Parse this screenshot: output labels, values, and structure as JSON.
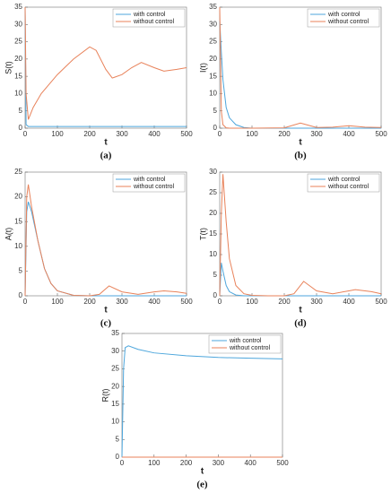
{
  "chart_data": [
    {
      "type": "line",
      "ylabel": "S(t)",
      "xlabel": "t",
      "caption": "(a)",
      "x": [
        0,
        3,
        10,
        25,
        50,
        100,
        150,
        200,
        220,
        250,
        270,
        300,
        330,
        360,
        400,
        430,
        470,
        500
      ],
      "series": [
        {
          "name": "with control",
          "color": "#4da6dc",
          "values": [
            35,
            1,
            0.5,
            0.5,
            0.5,
            0.5,
            0.5,
            0.5,
            0.5,
            0.5,
            0.5,
            0.5,
            0.5,
            0.5,
            0.5,
            0.5,
            0.5,
            0.5
          ]
        },
        {
          "name": "without control",
          "color": "#e8825a",
          "values": [
            35,
            10,
            2.5,
            6,
            10,
            15.5,
            20,
            23.5,
            22.5,
            17,
            14.5,
            15.5,
            17.5,
            19,
            17.5,
            16.5,
            17,
            17.5
          ]
        }
      ],
      "xlim": [
        0,
        500
      ],
      "xticks": [
        0,
        100,
        200,
        300,
        400,
        500
      ],
      "ylim": [
        0,
        35
      ],
      "yticks": [
        0,
        5,
        10,
        15,
        20,
        25,
        30,
        35
      ]
    },
    {
      "type": "line",
      "ylabel": "I(t)",
      "xlabel": "t",
      "caption": "(b)",
      "x": [
        0,
        5,
        10,
        20,
        30,
        50,
        75,
        100,
        200,
        250,
        300,
        350,
        400,
        450,
        500
      ],
      "series": [
        {
          "name": "with control",
          "color": "#4da6dc",
          "values": [
            31,
            22,
            14,
            6,
            3,
            1,
            0.2,
            0,
            0,
            0,
            0,
            0,
            0,
            0,
            0
          ]
        },
        {
          "name": "without control",
          "color": "#e8825a",
          "values": [
            35,
            5,
            1,
            0.1,
            0,
            0,
            0,
            0,
            0.1,
            1.5,
            0.2,
            0.3,
            0.7,
            0.3,
            0.2
          ]
        }
      ],
      "xlim": [
        0,
        500
      ],
      "xticks": [
        0,
        100,
        200,
        300,
        400,
        500
      ],
      "ylim": [
        0,
        35
      ],
      "yticks": [
        0,
        5,
        10,
        15,
        20,
        25,
        30,
        35
      ]
    },
    {
      "type": "line",
      "ylabel": "A(t)",
      "xlabel": "t",
      "caption": "(c)",
      "x": [
        0,
        5,
        10,
        20,
        40,
        60,
        80,
        100,
        150,
        200,
        230,
        260,
        300,
        350,
        400,
        430,
        470,
        500
      ],
      "series": [
        {
          "name": "with control",
          "color": "#4da6dc",
          "values": [
            0,
            17,
            19,
            17,
            11,
            5.5,
            2.5,
            1,
            0.1,
            0,
            0,
            0,
            0,
            0,
            0,
            0,
            0,
            0
          ]
        },
        {
          "name": "without control",
          "color": "#e8825a",
          "values": [
            0,
            20,
            22.5,
            18,
            11,
            5.5,
            2.5,
            1,
            0.1,
            0,
            0.3,
            2,
            0.8,
            0.3,
            0.8,
            1,
            0.8,
            0.5
          ]
        }
      ],
      "xlim": [
        0,
        500
      ],
      "xticks": [
        0,
        100,
        200,
        300,
        400,
        500
      ],
      "ylim": [
        0,
        25
      ],
      "yticks": [
        0,
        5,
        10,
        15,
        20,
        25
      ]
    },
    {
      "type": "line",
      "ylabel": "T(t)",
      "xlabel": "t",
      "caption": "(d)",
      "x": [
        0,
        5,
        10,
        20,
        30,
        50,
        75,
        100,
        150,
        200,
        230,
        260,
        300,
        350,
        400,
        420,
        470,
        500
      ],
      "series": [
        {
          "name": "with control",
          "color": "#4da6dc",
          "values": [
            0,
            8,
            6,
            2.5,
            1,
            0.2,
            0,
            0,
            0,
            0,
            0,
            0,
            0,
            0,
            0,
            0,
            0,
            0
          ]
        },
        {
          "name": "without control",
          "color": "#e8825a",
          "values": [
            0,
            20,
            29.5,
            18,
            9,
            2.5,
            0.5,
            0.1,
            0,
            0,
            0.5,
            3.5,
            1.2,
            0.5,
            1.2,
            1.5,
            1,
            0.5
          ]
        }
      ],
      "xlim": [
        0,
        500
      ],
      "xticks": [
        0,
        100,
        200,
        300,
        400,
        500
      ],
      "ylim": [
        0,
        30
      ],
      "yticks": [
        0,
        5,
        10,
        15,
        20,
        25,
        30
      ]
    },
    {
      "type": "line",
      "ylabel": "R(t)",
      "xlabel": "t",
      "caption": "(e)",
      "x": [
        0,
        5,
        10,
        20,
        50,
        100,
        200,
        300,
        400,
        500
      ],
      "series": [
        {
          "name": "with control",
          "color": "#4da6dc",
          "values": [
            0,
            25,
            31,
            31.5,
            30.5,
            29.5,
            28.7,
            28.2,
            28,
            27.8
          ]
        },
        {
          "name": "without control",
          "color": "#e8825a",
          "values": [
            0,
            0,
            0,
            0,
            0,
            0,
            0,
            0,
            0,
            0
          ]
        }
      ],
      "xlim": [
        0,
        500
      ],
      "xticks": [
        0,
        100,
        200,
        300,
        400,
        500
      ],
      "ylim": [
        0,
        35
      ],
      "yticks": [
        0,
        5,
        10,
        15,
        20,
        25,
        30,
        35
      ]
    }
  ]
}
